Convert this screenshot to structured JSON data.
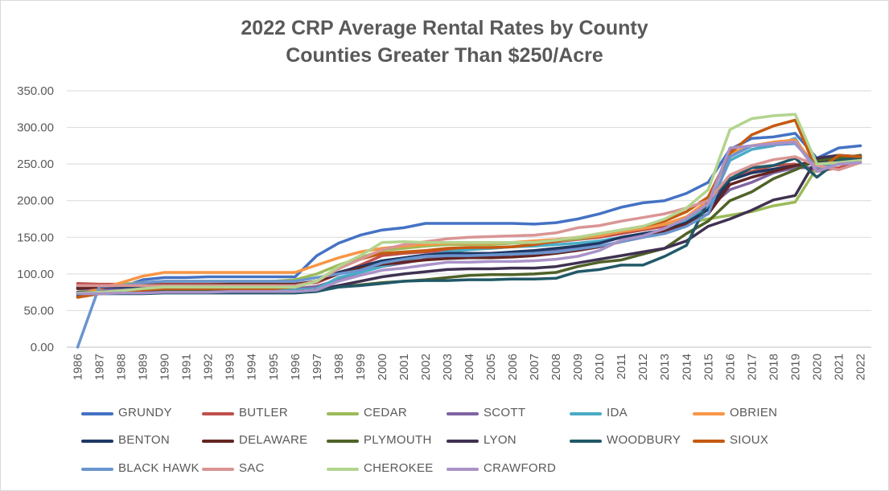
{
  "chart_data": {
    "type": "line",
    "title": [
      "2022 CRP Average Rental Rates by County",
      "Counties Greater Than $250/Acre"
    ],
    "xlabel": "",
    "ylabel": "",
    "ylim": [
      0,
      350
    ],
    "yticks": [
      "0.00",
      "50.00",
      "100.00",
      "150.00",
      "200.00",
      "250.00",
      "300.00",
      "350.00"
    ],
    "grid": "horizontal",
    "legend_position": "bottom",
    "x": [
      "1986",
      "1987",
      "1988",
      "1989",
      "1990",
      "1991",
      "1992",
      "1993",
      "1994",
      "1995",
      "1996",
      "1997",
      "1998",
      "1999",
      "2000",
      "2001",
      "2002",
      "2003",
      "2004",
      "2005",
      "2006",
      "2007",
      "2008",
      "2009",
      "2010",
      "2011",
      "2012",
      "2013",
      "2014",
      "2015",
      "2016",
      "2017",
      "2018",
      "2019",
      "2020",
      "2021",
      "2022"
    ],
    "series": [
      {
        "name": "GRUNDY",
        "color": "#4472C4",
        "values": [
          80,
          80,
          82,
          92,
          95,
          95,
          96,
          96,
          96,
          96,
          96,
          125,
          142,
          153,
          160,
          163,
          169,
          169,
          169,
          169,
          169,
          168,
          170,
          175,
          182,
          191,
          197,
          200,
          210,
          225,
          270,
          285,
          287,
          292,
          258,
          272,
          275
        ]
      },
      {
        "name": "BUTLER",
        "color": "#C0504D",
        "values": [
          87,
          86,
          86,
          86,
          86,
          86,
          86,
          86,
          86,
          86,
          86,
          88,
          100,
          112,
          125,
          128,
          130,
          132,
          134,
          135,
          137,
          140,
          144,
          147,
          150,
          155,
          160,
          165,
          175,
          190,
          230,
          240,
          248,
          250,
          240,
          245,
          253
        ]
      },
      {
        "name": "CEDAR",
        "color": "#9BBB59",
        "values": [
          75,
          82,
          86,
          88,
          90,
          90,
          90,
          90,
          90,
          90,
          92,
          100,
          112,
          122,
          132,
          135,
          138,
          140,
          140,
          140,
          142,
          143,
          145,
          148,
          152,
          158,
          162,
          168,
          170,
          175,
          180,
          185,
          193,
          198,
          245,
          250,
          258
        ]
      },
      {
        "name": "SCOTT",
        "color": "#8064A2",
        "values": [
          80,
          79,
          79,
          79,
          79,
          79,
          79,
          80,
          80,
          80,
          80,
          83,
          92,
          102,
          110,
          115,
          120,
          124,
          125,
          125,
          127,
          128,
          132,
          137,
          142,
          150,
          155,
          160,
          175,
          190,
          215,
          225,
          238,
          245,
          245,
          250,
          262
        ]
      },
      {
        "name": "IDA",
        "color": "#4BACC6",
        "values": [
          72,
          75,
          76,
          77,
          78,
          78,
          78,
          78,
          78,
          78,
          78,
          80,
          95,
          102,
          110,
          118,
          125,
          130,
          133,
          135,
          137,
          138,
          140,
          142,
          145,
          150,
          155,
          160,
          172,
          190,
          255,
          270,
          275,
          285,
          240,
          252,
          258
        ]
      },
      {
        "name": "OBRIEN",
        "color": "#F79646",
        "values": [
          72,
          80,
          88,
          97,
          102,
          102,
          102,
          102,
          102,
          102,
          102,
          112,
          122,
          130,
          135,
          138,
          140,
          142,
          142,
          142,
          143,
          145,
          147,
          150,
          152,
          158,
          162,
          168,
          178,
          200,
          265,
          275,
          280,
          283,
          245,
          250,
          255
        ]
      },
      {
        "name": "BENTON",
        "color": "#1F3864",
        "values": [
          82,
          82,
          82,
          83,
          84,
          84,
          84,
          85,
          85,
          85,
          85,
          90,
          102,
          110,
          118,
          122,
          126,
          128,
          128,
          128,
          130,
          132,
          135,
          138,
          142,
          150,
          155,
          160,
          170,
          188,
          228,
          238,
          243,
          248,
          252,
          255,
          260
        ]
      },
      {
        "name": "DELAWARE",
        "color": "#632523",
        "values": [
          80,
          82,
          84,
          85,
          85,
          85,
          85,
          86,
          86,
          86,
          86,
          90,
          100,
          108,
          113,
          116,
          119,
          121,
          122,
          122,
          123,
          125,
          128,
          132,
          137,
          144,
          150,
          158,
          168,
          182,
          222,
          232,
          240,
          248,
          255,
          258,
          260
        ]
      },
      {
        "name": "PLYMOUTH",
        "color": "#4F6228",
        "values": [
          73,
          74,
          75,
          76,
          76,
          76,
          76,
          76,
          76,
          76,
          76,
          78,
          82,
          85,
          88,
          90,
          92,
          95,
          98,
          99,
          99,
          100,
          102,
          110,
          116,
          119,
          127,
          135,
          155,
          172,
          200,
          212,
          230,
          242,
          255,
          258,
          262
        ]
      },
      {
        "name": "LYON",
        "color": "#3F3151",
        "values": [
          75,
          75,
          75,
          75,
          75,
          75,
          75,
          76,
          76,
          76,
          76,
          78,
          84,
          90,
          96,
          100,
          103,
          106,
          107,
          107,
          108,
          108,
          110,
          115,
          120,
          125,
          130,
          135,
          145,
          165,
          175,
          187,
          201,
          207,
          258,
          262,
          260
        ]
      },
      {
        "name": "WOODBURY",
        "color": "#215968",
        "values": [
          70,
          73,
          73,
          73,
          74,
          74,
          74,
          74,
          74,
          74,
          74,
          76,
          82,
          84,
          87,
          90,
          91,
          91,
          92,
          92,
          93,
          93,
          94,
          103,
          106,
          112,
          112,
          124,
          139,
          200,
          230,
          245,
          248,
          258,
          232,
          255,
          258
        ]
      },
      {
        "name": "SIOUX",
        "color": "#C55A11",
        "values": [
          68,
          73,
          75,
          78,
          80,
          80,
          80,
          80,
          80,
          80,
          82,
          90,
          108,
          120,
          128,
          130,
          132,
          135,
          136,
          136,
          137,
          140,
          145,
          150,
          155,
          160,
          165,
          172,
          185,
          205,
          265,
          290,
          302,
          310,
          240,
          262,
          260
        ]
      },
      {
        "name": "BLACK HAWK",
        "color": "#6A95CF",
        "values": [
          0,
          83,
          84,
          88,
          90,
          90,
          90,
          90,
          90,
          90,
          90,
          95,
          100,
          105,
          115,
          120,
          124,
          125,
          125,
          126,
          127,
          128,
          130,
          134,
          138,
          144,
          150,
          155,
          165,
          182,
          260,
          275,
          276,
          278,
          245,
          250,
          252
        ]
      },
      {
        "name": "SAC",
        "color": "#D99594",
        "values": [
          84,
          84,
          84,
          84,
          84,
          84,
          84,
          84,
          84,
          84,
          84,
          90,
          107,
          120,
          133,
          140,
          144,
          148,
          150,
          151,
          152,
          153,
          156,
          163,
          166,
          172,
          177,
          182,
          190,
          200,
          235,
          248,
          256,
          260,
          248,
          242,
          252
        ]
      },
      {
        "name": "CHEROKEE",
        "color": "#B3D48F",
        "values": [
          74,
          75,
          77,
          80,
          82,
          82,
          82,
          82,
          82,
          82,
          82,
          90,
          110,
          125,
          143,
          144,
          143,
          143,
          143,
          143,
          143,
          143,
          146,
          150,
          155,
          160,
          165,
          175,
          190,
          215,
          297,
          312,
          316,
          318,
          250,
          252,
          255
        ]
      },
      {
        "name": "CRAWFORD",
        "color": "#A992C8",
        "values": [
          73,
          73,
          74,
          74,
          75,
          75,
          75,
          76,
          76,
          76,
          76,
          78,
          90,
          98,
          105,
          108,
          112,
          116,
          116,
          117,
          117,
          118,
          120,
          124,
          132,
          146,
          152,
          162,
          176,
          196,
          272,
          275,
          278,
          280,
          240,
          250,
          252
        ]
      }
    ]
  }
}
